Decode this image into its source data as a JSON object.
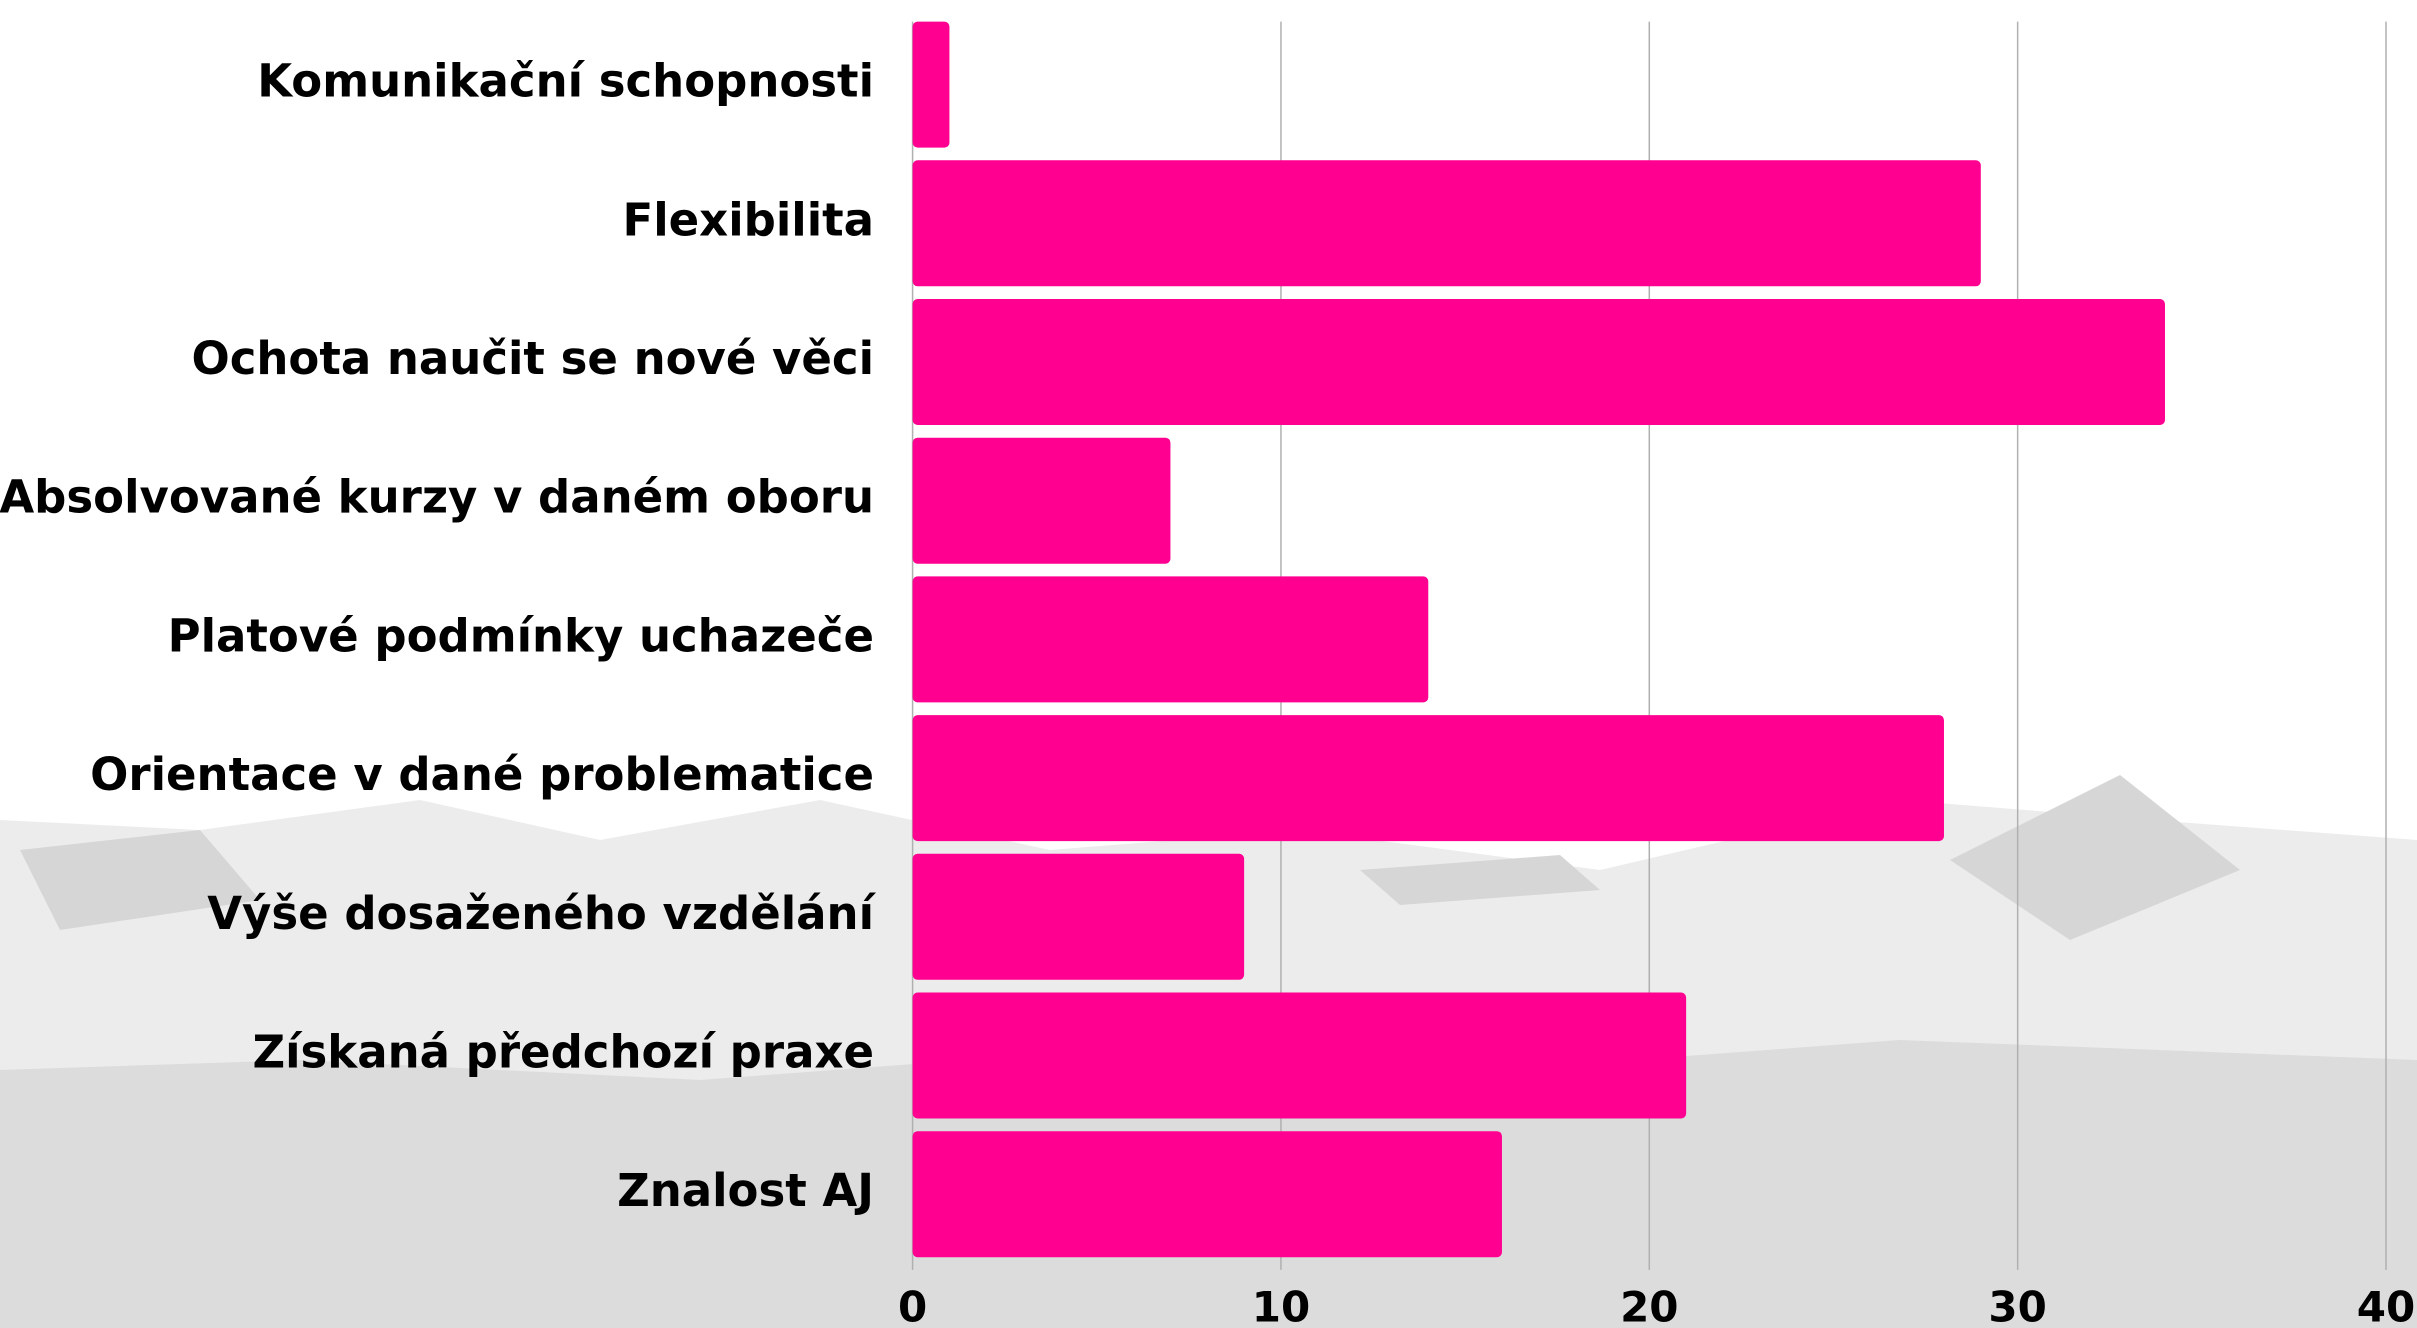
{
  "chart_data": {
    "type": "barh",
    "categories": [
      "Komunikační schopnosti",
      "Flexibilita",
      "Ochota naučit se nové věci",
      "Absolvované kurzy v daném oboru",
      "Platové podmínky uchazeče",
      "Orientace v dané problematice",
      "Výše dosaženého vzdělání",
      "Získaná předchozí praxe",
      "Znalost AJ"
    ],
    "values": [
      1,
      29,
      34,
      7,
      14,
      28,
      9,
      21,
      16
    ],
    "color": "#ff0090",
    "xlim": [
      0,
      40
    ],
    "xticks": [
      0,
      10,
      20,
      30,
      40
    ],
    "grid": true
  }
}
